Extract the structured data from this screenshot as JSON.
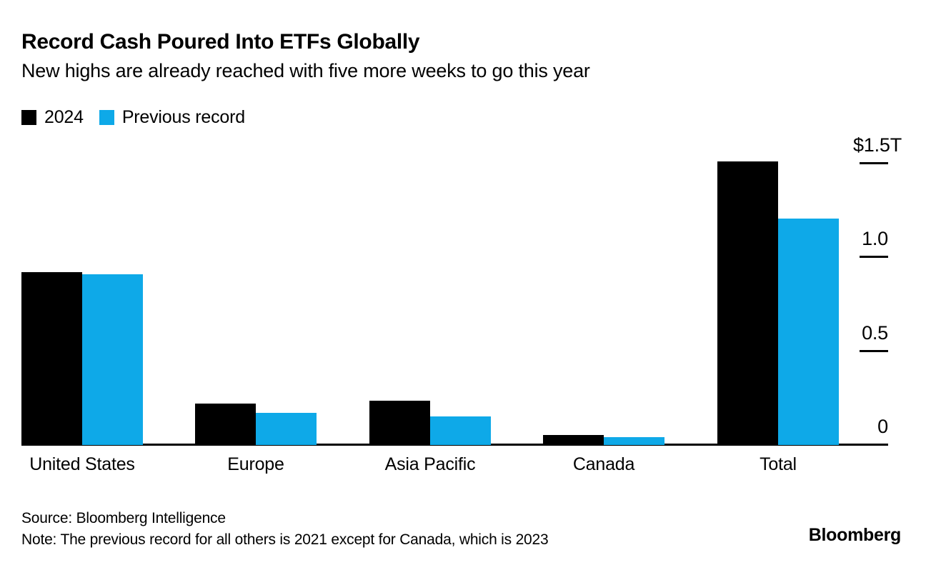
{
  "header": {
    "title": "Record Cash Poured Into ETFs Globally",
    "subtitle": "New highs are already reached with five more weeks to go this year"
  },
  "legend": [
    {
      "label": "2024",
      "color": "#000000"
    },
    {
      "label": "Previous record",
      "color": "#0EA9E8"
    }
  ],
  "chart_data": {
    "type": "bar",
    "title": "Record Cash Poured Into ETFs Globally",
    "subtitle": "New highs are already reached with five more weeks to go this year",
    "unit": "trillions of US dollars",
    "categories": [
      "United States",
      "Europe",
      "Asia Pacific",
      "Canada",
      "Total"
    ],
    "series": [
      {
        "name": "2024",
        "color": "#000000",
        "values": [
          0.92,
          0.22,
          0.235,
          0.053,
          1.51
        ]
      },
      {
        "name": "Previous record",
        "color": "#0EA9E8",
        "values": [
          0.91,
          0.171,
          0.152,
          0.042,
          1.205
        ]
      }
    ],
    "yticks": [
      {
        "label": "$1.5T",
        "value": 1.5
      },
      {
        "label": "1.0",
        "value": 1.0
      },
      {
        "label": "0.5",
        "value": 0.5
      },
      {
        "label": "0",
        "value": 0
      }
    ],
    "ylim": [
      0,
      1.55
    ],
    "grid": false,
    "axis_side": "right",
    "legend_position": "top-left"
  },
  "footer": {
    "source": "Source: Bloomberg Intelligence",
    "note": "Note: The previous record for all others is 2021 except for Canada, which is 2023",
    "brand": "Bloomberg"
  }
}
